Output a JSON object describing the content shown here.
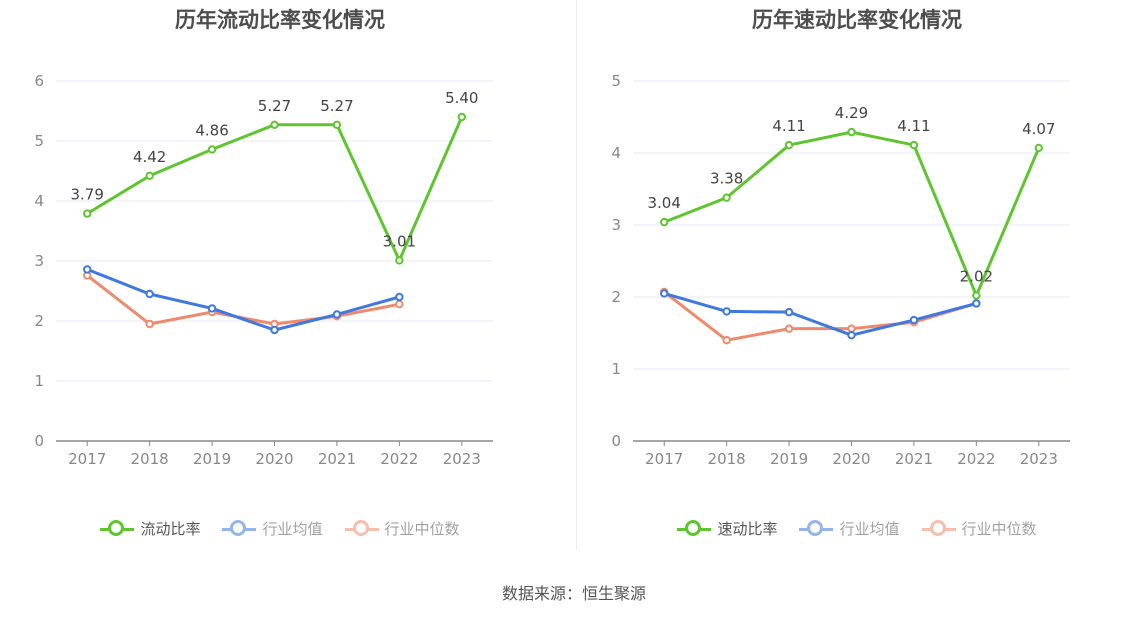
{
  "source": "数据来源：恒生聚源",
  "colors": {
    "main": "#5ec52f",
    "avg": "#3f78e0",
    "median": "#f0896b",
    "grid": "#e6e9f5",
    "axis": "#888888"
  },
  "chart_data": [
    {
      "type": "line",
      "title": "历年流动比率变化情况",
      "categories": [
        "2017",
        "2018",
        "2019",
        "2020",
        "2021",
        "2022",
        "2023"
      ],
      "ylim": [
        0,
        6
      ],
      "yticks": [
        "0",
        "1",
        "2",
        "3",
        "4",
        "5",
        "6"
      ],
      "grid": true,
      "legend_position": "bottom",
      "series": [
        {
          "name": "流动比率",
          "values": [
            3.79,
            4.42,
            4.86,
            5.27,
            5.27,
            3.01,
            5.4
          ],
          "labels": [
            "3.79",
            "4.42",
            "4.86",
            "5.27",
            "5.27",
            "3.01",
            "5.40"
          ]
        },
        {
          "name": "行业均值",
          "values": [
            2.86,
            2.45,
            2.21,
            1.85,
            2.11,
            2.4,
            null
          ]
        },
        {
          "name": "行业中位数",
          "values": [
            2.76,
            1.95,
            2.15,
            1.95,
            2.08,
            2.28,
            null
          ]
        }
      ]
    },
    {
      "type": "line",
      "title": "历年速动比率变化情况",
      "categories": [
        "2017",
        "2018",
        "2019",
        "2020",
        "2021",
        "2022",
        "2023"
      ],
      "ylim": [
        0,
        5
      ],
      "yticks": [
        "0",
        "1",
        "2",
        "3",
        "4",
        "5"
      ],
      "grid": true,
      "legend_position": "bottom",
      "series": [
        {
          "name": "速动比率",
          "values": [
            3.04,
            3.38,
            4.11,
            4.29,
            4.11,
            2.02,
            4.07
          ],
          "labels": [
            "3.04",
            "3.38",
            "4.11",
            "4.29",
            "4.11",
            "2.02",
            "4.07"
          ]
        },
        {
          "name": "行业均值",
          "values": [
            2.05,
            1.8,
            1.79,
            1.47,
            1.68,
            1.91,
            null
          ]
        },
        {
          "name": "行业中位数",
          "values": [
            2.07,
            1.4,
            1.56,
            1.56,
            1.65,
            1.91,
            null
          ]
        }
      ]
    }
  ]
}
